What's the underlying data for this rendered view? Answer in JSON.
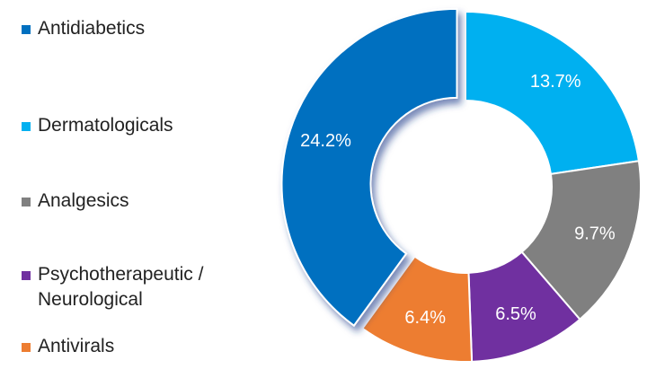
{
  "chart_data": {
    "type": "donut",
    "categories": [
      "Antidiabetics",
      "Dermatologicals",
      "Analgesics",
      "Psychotherapeutic / Neurological",
      "Antivirals"
    ],
    "values": [
      24.2,
      13.7,
      9.7,
      6.5,
      6.4
    ],
    "value_labels": [
      "24.2%",
      "13.7%",
      "9.7%",
      "6.5%",
      "6.4%"
    ],
    "colors": [
      "#0070c0",
      "#00b0f0",
      "#808080",
      "#7030a0",
      "#ed7d31"
    ],
    "legend": "left"
  }
}
